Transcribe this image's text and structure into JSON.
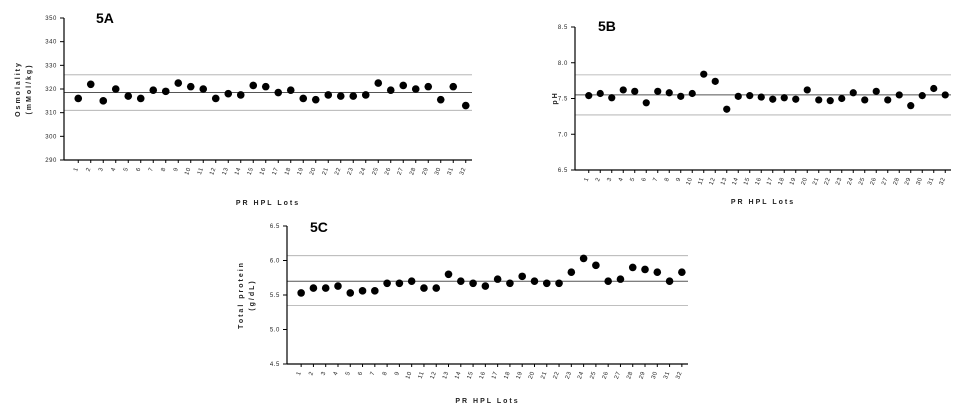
{
  "chart_data": [
    {
      "type": "scatter",
      "title": "5A",
      "xlabel": "PR HPL Lots",
      "ylabel": "Osmolality (mMol/kg)",
      "ylim": [
        290,
        350
      ],
      "yticks": [
        290,
        300,
        310,
        320,
        330,
        340,
        350
      ],
      "categories": [
        "1",
        "2",
        "3",
        "4",
        "5",
        "6",
        "7",
        "8",
        "9",
        "10",
        "11",
        "12",
        "13",
        "14",
        "15",
        "16",
        "17",
        "18",
        "19",
        "20",
        "21",
        "22",
        "23",
        "24",
        "25",
        "26",
        "27",
        "28",
        "29",
        "30",
        "31",
        "32"
      ],
      "values": [
        316,
        322,
        315,
        320,
        317,
        316,
        319.5,
        319,
        322.5,
        321,
        320,
        316,
        318,
        317.5,
        321.5,
        321,
        318.5,
        319.5,
        316,
        315.5,
        317.5,
        317,
        317,
        317.5,
        322.5,
        319.5,
        321.5,
        320,
        321,
        315.5,
        321,
        313
      ],
      "reference_lines": {
        "mean": 318.5,
        "upper": 326,
        "lower": 311
      }
    },
    {
      "type": "scatter",
      "title": "5B",
      "xlabel": "PR HPL Lots",
      "ylabel": "pH",
      "ylim": [
        6.5,
        8.5
      ],
      "yticks": [
        6.5,
        7.0,
        7.5,
        8.0,
        8.5
      ],
      "categories": [
        "1",
        "2",
        "3",
        "4",
        "5",
        "6",
        "7",
        "8",
        "9",
        "10",
        "11",
        "12",
        "13",
        "14",
        "15",
        "16",
        "17",
        "18",
        "19",
        "20",
        "21",
        "22",
        "23",
        "24",
        "25",
        "26",
        "27",
        "28",
        "29",
        "30",
        "31",
        "32"
      ],
      "values": [
        7.54,
        7.57,
        7.51,
        7.62,
        7.6,
        7.44,
        7.6,
        7.58,
        7.53,
        7.57,
        7.84,
        7.74,
        7.35,
        7.53,
        7.54,
        7.52,
        7.49,
        7.51,
        7.49,
        7.62,
        7.48,
        7.47,
        7.5,
        7.58,
        7.48,
        7.6,
        7.48,
        7.55,
        7.4,
        7.54,
        7.64,
        7.55
      ],
      "reference_lines": {
        "mean": 7.55,
        "upper": 7.83,
        "lower": 7.27
      }
    },
    {
      "type": "scatter",
      "title": "5C",
      "xlabel": "PR HPL Lots",
      "ylabel": "Total protein (g/dL)",
      "ylim": [
        4.5,
        6.5
      ],
      "yticks": [
        4.5,
        5.0,
        5.5,
        6.0,
        6.5
      ],
      "categories": [
        "1",
        "2",
        "3",
        "4",
        "5",
        "6",
        "7",
        "8",
        "9",
        "10",
        "11",
        "12",
        "13",
        "14",
        "15",
        "16",
        "17",
        "18",
        "19",
        "20",
        "21",
        "22",
        "23",
        "24",
        "25",
        "26",
        "27",
        "28",
        "29",
        "30",
        "31",
        "32"
      ],
      "values": [
        5.53,
        5.6,
        5.6,
        5.63,
        5.53,
        5.56,
        5.56,
        5.67,
        5.67,
        5.7,
        5.6,
        5.6,
        5.8,
        5.7,
        5.67,
        5.63,
        5.73,
        5.67,
        5.77,
        5.7,
        5.67,
        5.67,
        5.83,
        6.03,
        5.93,
        5.7,
        5.73,
        5.9,
        5.87,
        5.83,
        5.7,
        5.83
      ],
      "reference_lines": {
        "mean": 5.7,
        "upper": 6.07,
        "lower": 5.35
      }
    }
  ]
}
